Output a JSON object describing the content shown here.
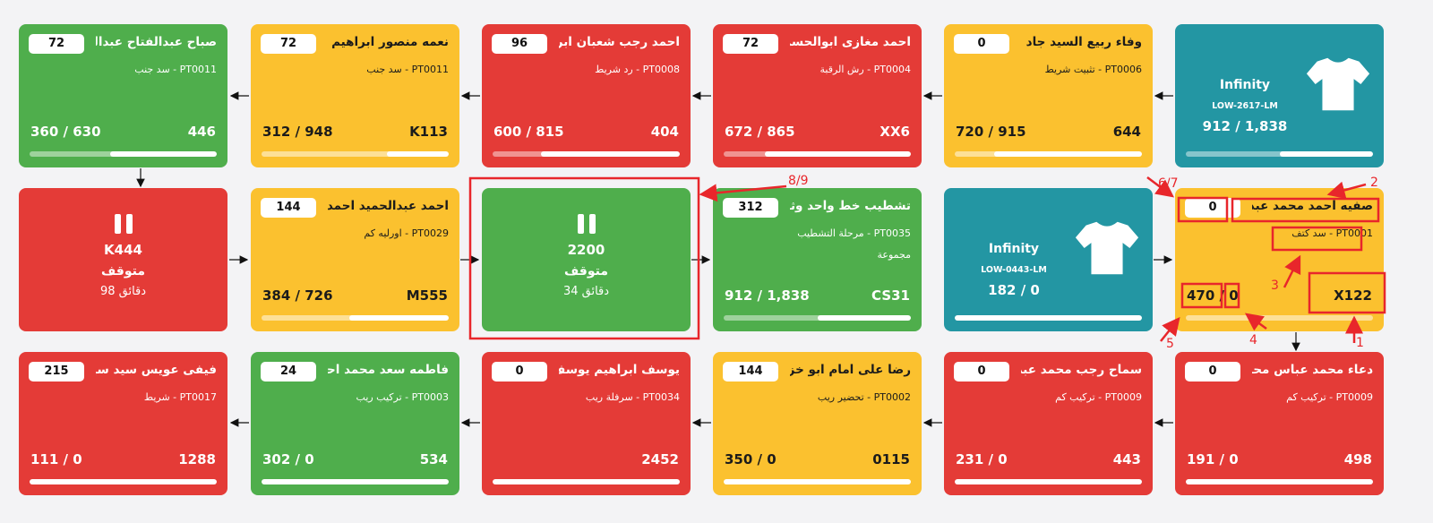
{
  "colors": {
    "red": "#e43b37",
    "yellow": "#fbc12f",
    "green": "#4fae4c",
    "teal": "#2396a3",
    "annotation": "#e8262b"
  },
  "row1": [
    {
      "type": "product",
      "brand": "Infinity",
      "model": "LOW-2617-LM",
      "qty": "912 / 1,838",
      "progress": 0.5,
      "icon": "tshirt-icon"
    },
    {
      "type": "station",
      "color": "yellow",
      "name": "وفاء ربيع السيد جاد",
      "badge": "0",
      "sub": "PT0006 - تثبيت شريط",
      "left": "720 / 915",
      "right": "644",
      "progress": 0.79
    },
    {
      "type": "station",
      "color": "red",
      "name": "احمد مغازى ابوالحسن",
      "badge": "72",
      "sub": "PT0004 - رش الرقبة",
      "left": "672 / 865",
      "right": "XX6",
      "progress": 0.78
    },
    {
      "type": "station",
      "color": "red",
      "name": "احمد رجب شعبان ابراهيم",
      "badge": "96",
      "sub": "PT0008 - رد شريط",
      "left": "600 / 815",
      "right": "404",
      "progress": 0.74
    },
    {
      "type": "station",
      "color": "yellow",
      "name": "نعمه منصور ابراهيم",
      "badge": "72",
      "sub": "PT0011 - سد جنب",
      "left": "312 / 948",
      "right": "K113",
      "progress": 0.33
    },
    {
      "type": "station",
      "color": "green",
      "name": "صباح عبدالفتاح عبدالله",
      "badge": "72",
      "sub": "PT0011 - سد جنب",
      "left": "360 / 630",
      "right": "446",
      "progress": 0.57
    }
  ],
  "row2": [
    {
      "type": "station",
      "color": "yellow",
      "name": "صفيه احمد محمد عبده",
      "badge": "0",
      "sub": "PT0001 - سد كتف",
      "left_a": "470",
      "left_b": "0",
      "right": "X122",
      "progress": 0
    },
    {
      "type": "product",
      "brand": "Infinity",
      "model": "LOW-0443-LM",
      "qty": "182 / 0",
      "progress": 1,
      "icon": "tshirt-icon"
    },
    {
      "type": "station",
      "color": "green",
      "name": "تشطيب خط واحد وثلاثة",
      "badge": "312",
      "sub": "PT0035 - مرحلة التشطيب",
      "extra": "مجموعة",
      "left": "912 / 1,838",
      "right": "CS31",
      "progress": 0.5
    },
    {
      "type": "stopped",
      "color": "green",
      "code": "2200",
      "state": "متوقف",
      "time": "34 دقائق",
      "icon": "pause-icon"
    },
    {
      "type": "station",
      "color": "yellow",
      "name": "احمد عبدالحميد احمد",
      "badge": "144",
      "sub": "PT0029 - اورليه كم",
      "left": "384 / 726",
      "right": "M555",
      "progress": 0.53
    },
    {
      "type": "stopped",
      "color": "red",
      "code": "K444",
      "state": "متوقف",
      "time": "98 دقائق",
      "icon": "pause-icon"
    }
  ],
  "row3": [
    {
      "type": "station",
      "color": "red",
      "name": "دعاء محمد عباس محمد",
      "badge": "0",
      "sub": "PT0009 - تركيب كم",
      "left": "191 / 0",
      "right": "498",
      "progress": 1
    },
    {
      "type": "station",
      "color": "red",
      "name": "سماح رجب محمد عبده",
      "badge": "0",
      "sub": "PT0009 - تركيب كم",
      "left": "231 / 0",
      "right": "443",
      "progress": 1
    },
    {
      "type": "station",
      "color": "yellow",
      "name": "رضا على امام ابو خزيم",
      "badge": "144",
      "sub": "PT0002 - تحضير ريب",
      "left": "350 / 0",
      "right": "0115",
      "progress": 1
    },
    {
      "type": "station",
      "color": "red",
      "name": "يوسف ابراهيم يوسف",
      "badge": "0",
      "sub": "PT0034 - سرفلة ريب",
      "left": "",
      "right": "2452",
      "progress": 1
    },
    {
      "type": "station",
      "color": "green",
      "name": "فاطمه سعد محمد احمد",
      "badge": "24",
      "sub": "PT0003 - تركيب ريب",
      "left": "302 / 0",
      "right": "534",
      "progress": 1
    },
    {
      "type": "station",
      "color": "red",
      "name": "فيفى عويس سيد سيد",
      "badge": "215",
      "sub": "PT0017 - شريط",
      "left": "111 / 0",
      "right": "1288",
      "progress": 1
    }
  ],
  "annotations": {
    "a1": "1",
    "a2": "2",
    "a3": "3",
    "a4": "4",
    "a5": "5",
    "a67": "6/7",
    "a89": "8/9"
  }
}
